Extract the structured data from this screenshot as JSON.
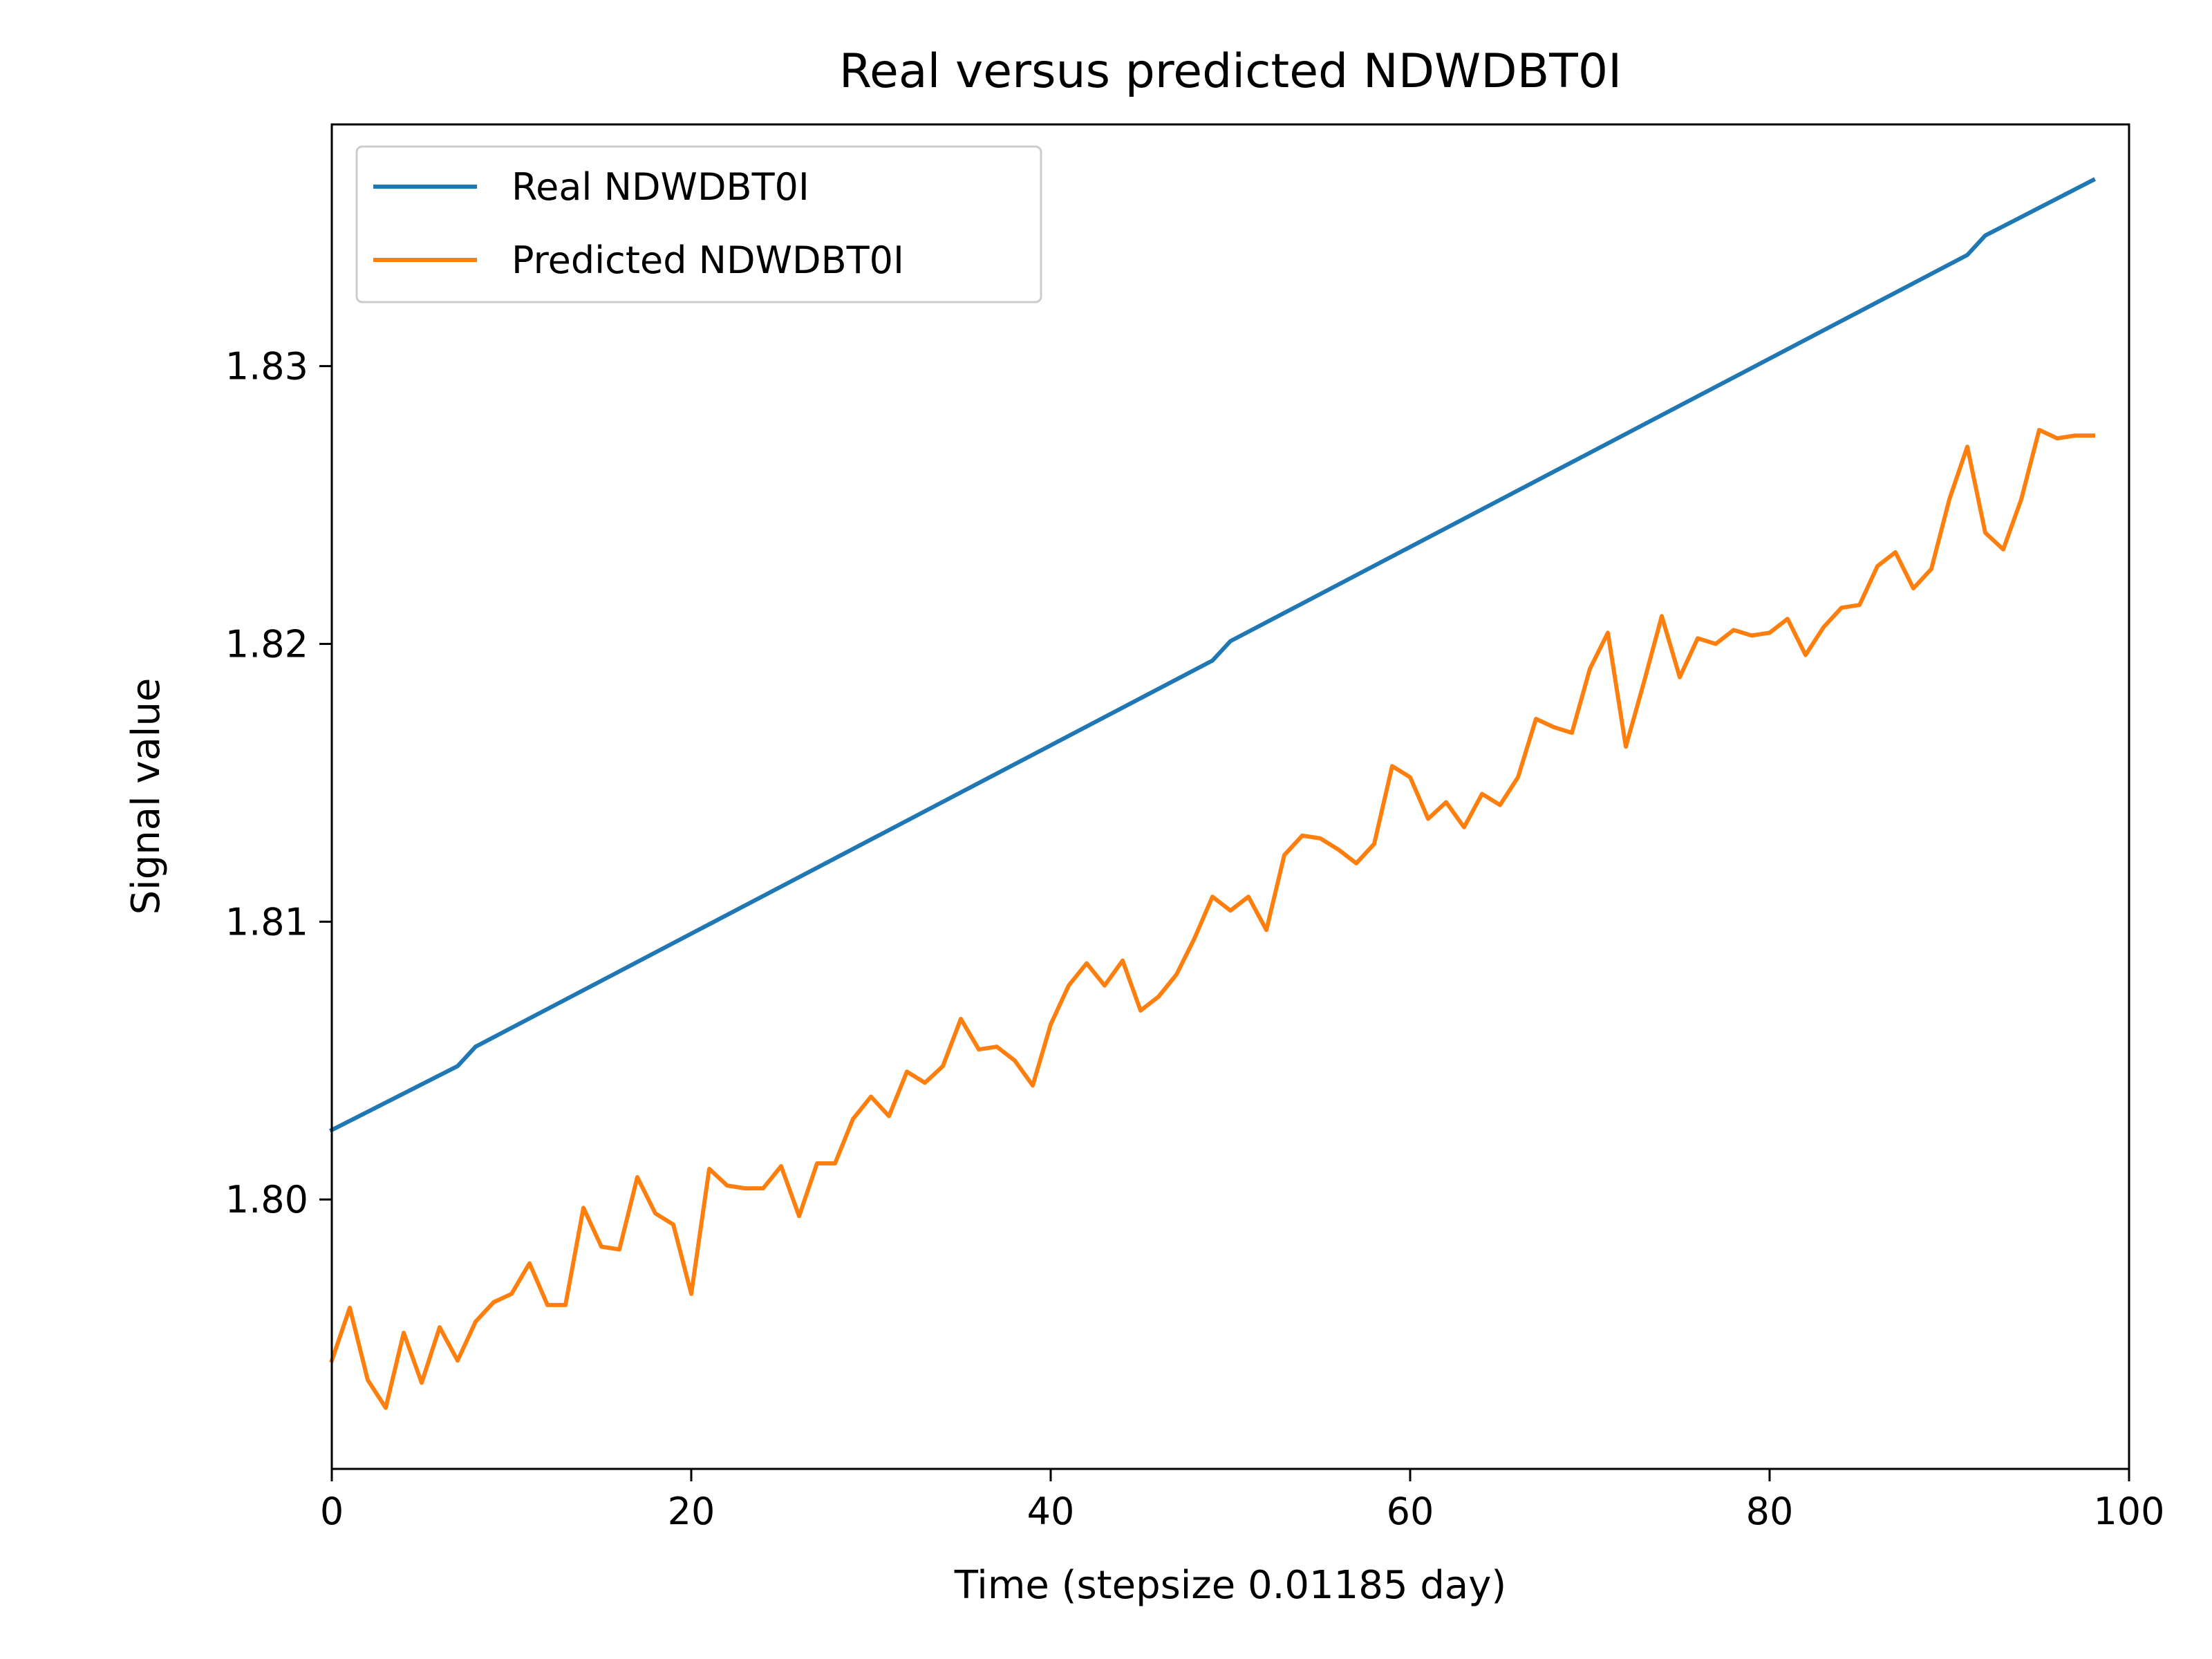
{
  "chart_data": {
    "type": "line",
    "title": "Real versus predicted NDWDBT0I",
    "xlabel": "Time (stepsize 0.01185 day)",
    "ylabel": "Signal value",
    "xlim": [
      0,
      100
    ],
    "ylim": [
      1.7903,
      1.8387
    ],
    "xticks": [
      0,
      20,
      40,
      60,
      80,
      100
    ],
    "yticks": [
      1.8,
      1.81,
      1.82,
      1.83
    ],
    "xtick_labels": [
      "0",
      "20",
      "40",
      "60",
      "80",
      "100"
    ],
    "ytick_labels": [
      "1.80",
      "1.81",
      "1.82",
      "1.83"
    ],
    "grid": false,
    "legend_position": "top-left",
    "series": [
      {
        "name": "Real NDWDBT0I",
        "color": "#1f77b4",
        "x": [
          0,
          7,
          8,
          49,
          50,
          91,
          92,
          98
        ],
        "y": [
          1.8025,
          1.8048,
          1.8055,
          1.8194,
          1.8201,
          1.834,
          1.8347,
          1.8367
        ]
      },
      {
        "name": "Predicted NDWDBT0I",
        "color": "#ff7f0e",
        "x": [
          0,
          1,
          2,
          3,
          4,
          5,
          6,
          7,
          8,
          9,
          10,
          11,
          12,
          13,
          14,
          15,
          16,
          17,
          18,
          19,
          20,
          21,
          22,
          23,
          24,
          25,
          26,
          27,
          28,
          29,
          30,
          31,
          32,
          33,
          34,
          35,
          36,
          37,
          38,
          39,
          40,
          41,
          42,
          43,
          44,
          45,
          46,
          47,
          48,
          49,
          50,
          51,
          52,
          53,
          54,
          55,
          56,
          57,
          58,
          59,
          60,
          61,
          62,
          63,
          64,
          65,
          66,
          67,
          68,
          69,
          70,
          71,
          72,
          73,
          74,
          75,
          76,
          77,
          78,
          79,
          80,
          81,
          82,
          83,
          84,
          85,
          86,
          87,
          88,
          89,
          90,
          91,
          92,
          93,
          94,
          95,
          96,
          97,
          98
        ],
        "y": [
          1.7942,
          1.7961,
          1.7935,
          1.7925,
          1.7952,
          1.7934,
          1.7954,
          1.7942,
          1.7956,
          1.7963,
          1.7966,
          1.7977,
          1.7962,
          1.7962,
          1.7997,
          1.7983,
          1.7982,
          1.8008,
          1.7995,
          1.7991,
          1.7966,
          1.8011,
          1.8005,
          1.8004,
          1.8004,
          1.8012,
          1.7994,
          1.8013,
          1.8013,
          1.8029,
          1.8037,
          1.803,
          1.8046,
          1.8042,
          1.8048,
          1.8065,
          1.8054,
          1.8055,
          1.805,
          1.8041,
          1.8063,
          1.8077,
          1.8085,
          1.8077,
          1.8086,
          1.8068,
          1.8073,
          1.8081,
          1.8094,
          1.8109,
          1.8104,
          1.8109,
          1.8097,
          1.8124,
          1.8131,
          1.813,
          1.8126,
          1.8121,
          1.8128,
          1.8156,
          1.8152,
          1.8137,
          1.8143,
          1.8134,
          1.8146,
          1.8142,
          1.8152,
          1.8173,
          1.817,
          1.8168,
          1.8191,
          1.8204,
          1.8163,
          1.8186,
          1.821,
          1.8188,
          1.8202,
          1.82,
          1.8205,
          1.8203,
          1.8204,
          1.8209,
          1.8196,
          1.8206,
          1.8213,
          1.8214,
          1.8228,
          1.8233,
          1.822,
          1.8227,
          1.8252,
          1.8271,
          1.824,
          1.8234,
          1.8252,
          1.8277,
          1.8274,
          1.8275,
          1.8275
        ]
      }
    ]
  }
}
